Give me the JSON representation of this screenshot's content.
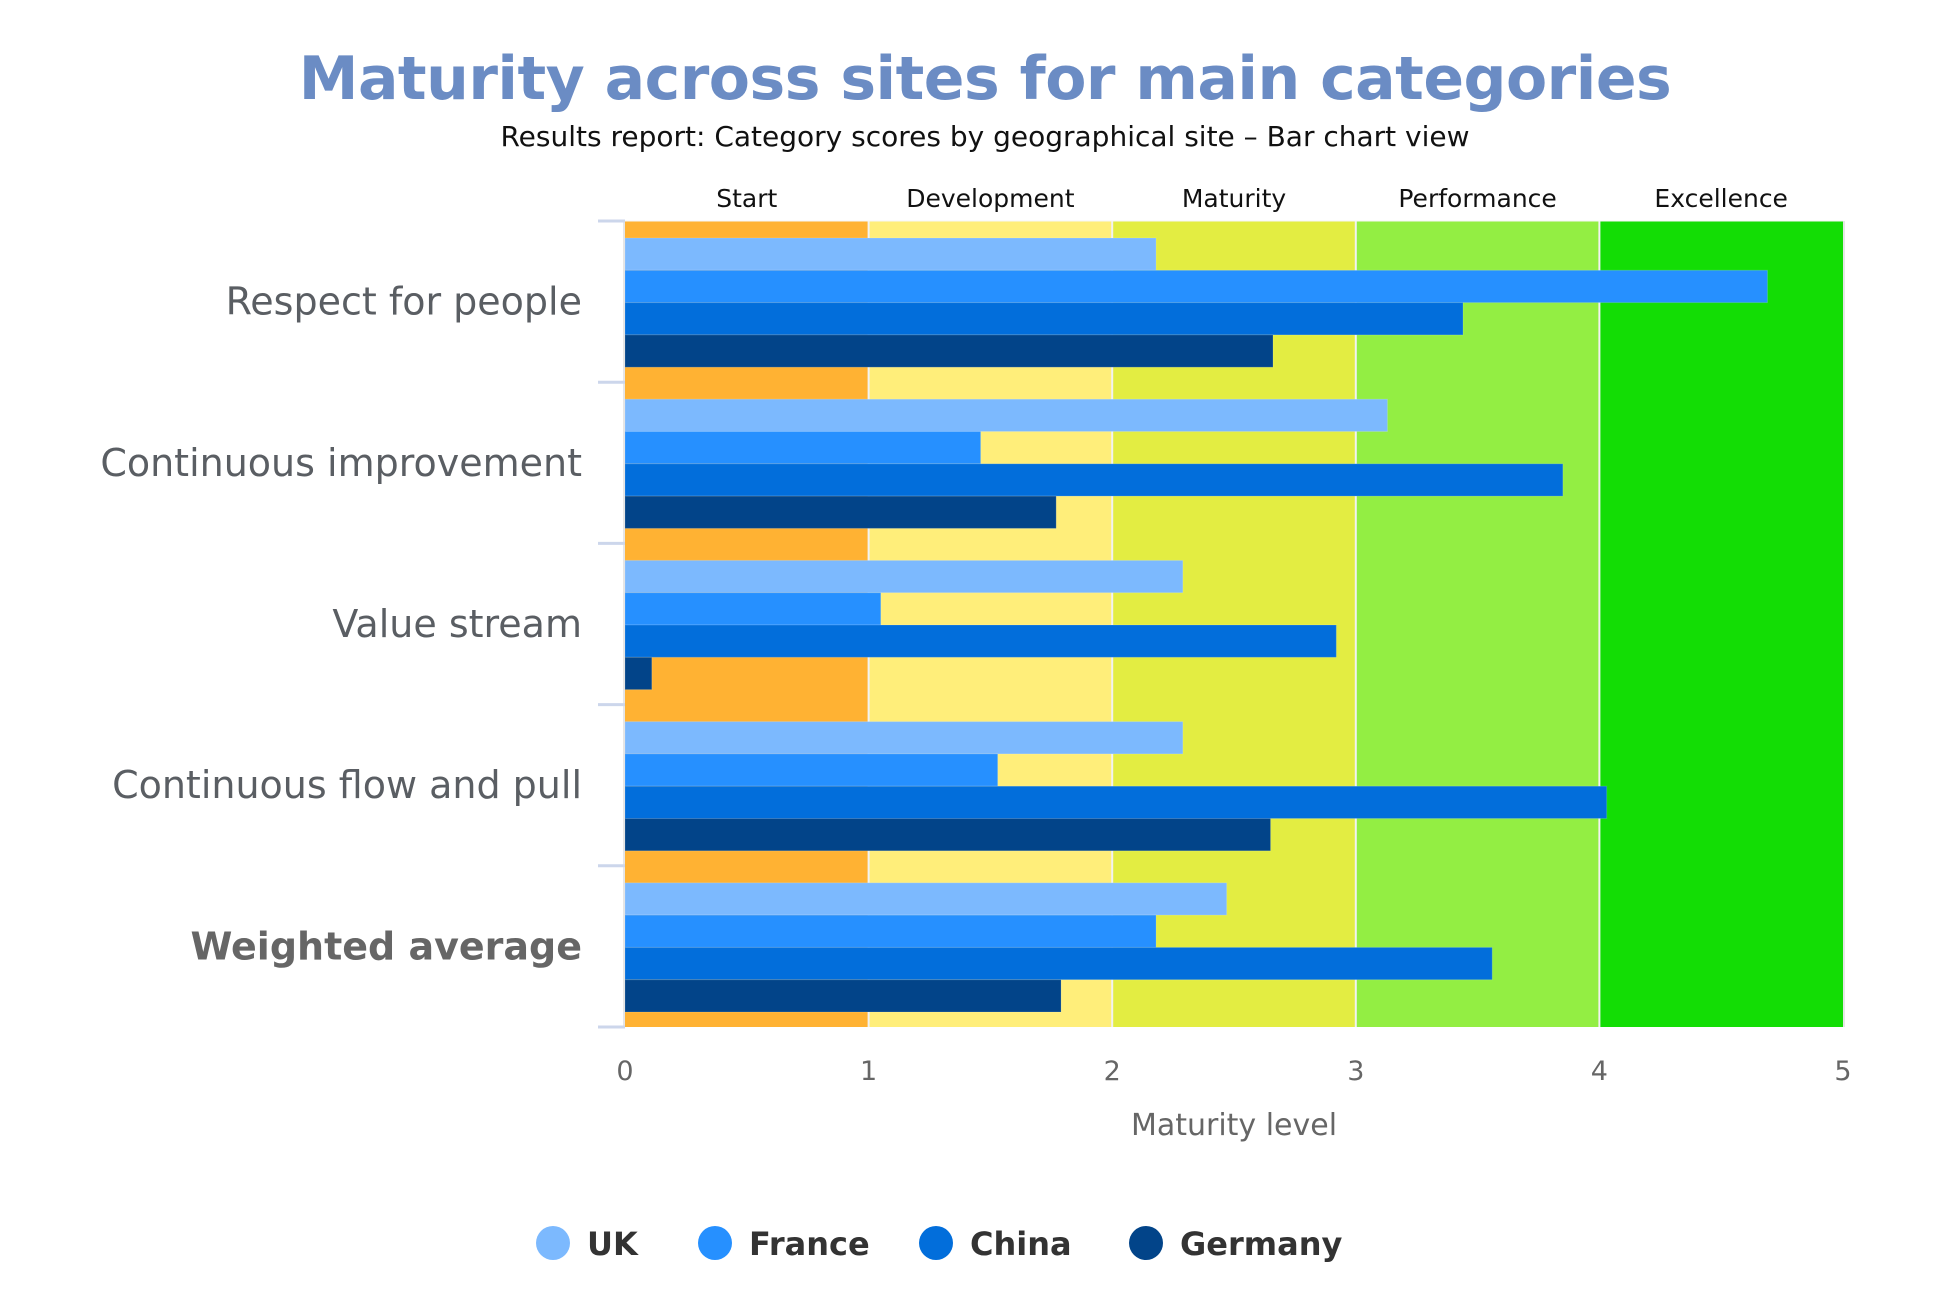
{
  "title": "Maturity across sites for main categories",
  "subtitle": "Results report: Category scores by geographical site – Bar chart view",
  "chart_data": {
    "type": "bar",
    "orientation": "horizontal",
    "title": "Maturity across sites for main categories",
    "subtitle": "Results report: Category scores by geographical site – Bar chart view",
    "xlabel": "Maturity level",
    "ylabel": "",
    "xlim": [
      0,
      5
    ],
    "x_ticks": [
      "0",
      "1",
      "2",
      "3",
      "4",
      "5"
    ],
    "grid": false,
    "categories": [
      "Respect for people",
      "Continuous improvement",
      "Value stream",
      "Continuous flow and pull",
      "Weighted average"
    ],
    "bold_categories": [
      "Weighted average"
    ],
    "series": [
      {
        "name": "UK",
        "color": "#7cb9fe",
        "values": [
          2.18,
          3.13,
          2.29,
          2.29,
          2.47
        ]
      },
      {
        "name": "France",
        "color": "#2690ff",
        "values": [
          4.69,
          1.46,
          1.05,
          1.53,
          2.18
        ]
      },
      {
        "name": "China",
        "color": "#026edb",
        "values": [
          3.44,
          3.85,
          2.92,
          4.03,
          3.56
        ]
      },
      {
        "name": "Germany",
        "color": "#024489",
        "values": [
          2.66,
          1.77,
          0.11,
          2.65,
          1.79
        ]
      }
    ],
    "bands": [
      {
        "label": "Start",
        "from": 0,
        "to": 1,
        "color": "#ffb233"
      },
      {
        "label": "Development",
        "from": 1,
        "to": 2,
        "color": "#ffee7a"
      },
      {
        "label": "Maturity",
        "from": 2,
        "to": 3,
        "color": "#e3ed42"
      },
      {
        "label": "Performance",
        "from": 3,
        "to": 4,
        "color": "#93ee43"
      },
      {
        "label": "Excellence",
        "from": 4,
        "to": 5,
        "color": "#13dd05"
      }
    ],
    "legend": {
      "placement": "bottom-center",
      "items": [
        "UK",
        "France",
        "China",
        "Germany"
      ]
    }
  }
}
